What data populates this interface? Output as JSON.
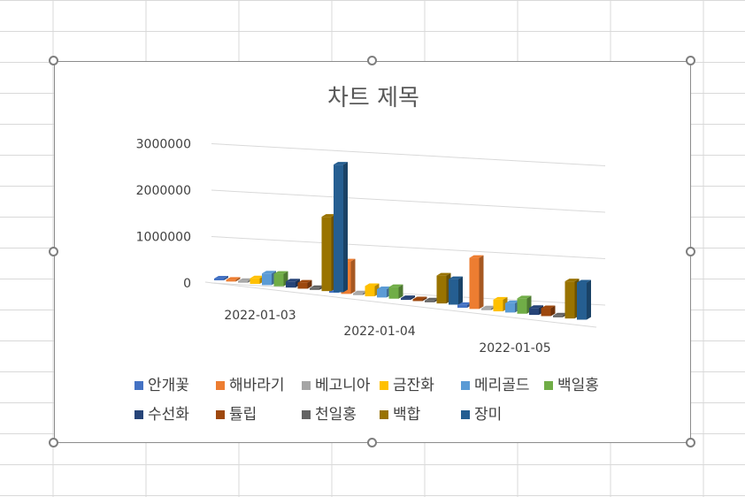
{
  "chart_data": {
    "type": "bar",
    "subtype": "3d-clustered-column",
    "title": "차트 제목",
    "xlabel": "",
    "ylabel": "",
    "categories": [
      "2022-01-03",
      "2022-01-04",
      "2022-01-05"
    ],
    "y_ticks": [
      "0",
      "1000000",
      "2000000",
      "3000000"
    ],
    "ylim": [
      0,
      3000000
    ],
    "grid": true,
    "legend_position": "bottom",
    "series": [
      {
        "name": "안개꽃",
        "color": "#4472C4",
        "values": [
          20000,
          40000,
          60000
        ]
      },
      {
        "name": "해바라기",
        "color": "#ED7D31",
        "values": [
          30000,
          700000,
          1100000
        ]
      },
      {
        "name": "베고니아",
        "color": "#A5A5A5",
        "values": [
          25000,
          10000,
          20000
        ]
      },
      {
        "name": "금잔화",
        "color": "#FFC000",
        "values": [
          120000,
          220000,
          250000
        ]
      },
      {
        "name": "메리골드",
        "color": "#5B9BD5",
        "values": [
          250000,
          180000,
          200000
        ]
      },
      {
        "name": "백일홍",
        "color": "#70AD47",
        "values": [
          270000,
          250000,
          330000
        ]
      },
      {
        "name": "수선화",
        "color": "#264478",
        "values": [
          130000,
          15000,
          150000
        ]
      },
      {
        "name": "튤립",
        "color": "#9E480E",
        "values": [
          130000,
          20000,
          170000
        ]
      },
      {
        "name": "천일홍",
        "color": "#636363",
        "values": [
          20000,
          10000,
          20000
        ]
      },
      {
        "name": "백합",
        "color": "#997300",
        "values": [
          1600000,
          600000,
          800000
        ]
      },
      {
        "name": "장미",
        "color": "#255E91",
        "values": [
          2750000,
          550000,
          800000
        ]
      }
    ]
  }
}
